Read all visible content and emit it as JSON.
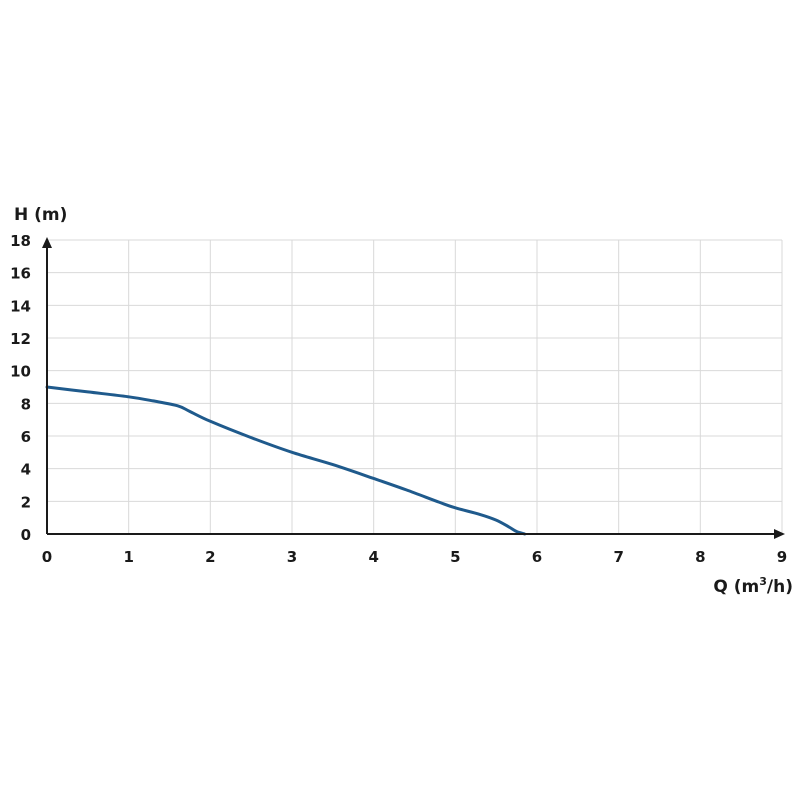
{
  "chart_data": {
    "type": "line",
    "title": "",
    "ylabel": "H (m)",
    "xlabel_prefix": "Q (m",
    "xlabel_sup": "3",
    "xlabel_suffix": "/h)",
    "xlim": [
      0,
      9
    ],
    "ylim": [
      0,
      18
    ],
    "x_ticks": [
      "0",
      "1",
      "2",
      "3",
      "4",
      "5",
      "6",
      "7",
      "8",
      "9"
    ],
    "y_ticks": [
      "0",
      "2",
      "4",
      "6",
      "8",
      "10",
      "12",
      "14",
      "16",
      "18"
    ],
    "grid": true,
    "series": [
      {
        "color": "#1f5a8c",
        "x": [
          0,
          0.5,
          1,
          1.3,
          1.6,
          1.75,
          2,
          2.5,
          3,
          3.5,
          4,
          4.4,
          4.8,
          5,
          5.3,
          5.5,
          5.65,
          5.75,
          5.85
        ],
        "y": [
          9.0,
          8.7,
          8.4,
          8.15,
          7.85,
          7.5,
          6.9,
          5.9,
          5.0,
          4.25,
          3.4,
          2.7,
          1.95,
          1.6,
          1.2,
          0.85,
          0.45,
          0.15,
          0.0
        ]
      }
    ]
  }
}
